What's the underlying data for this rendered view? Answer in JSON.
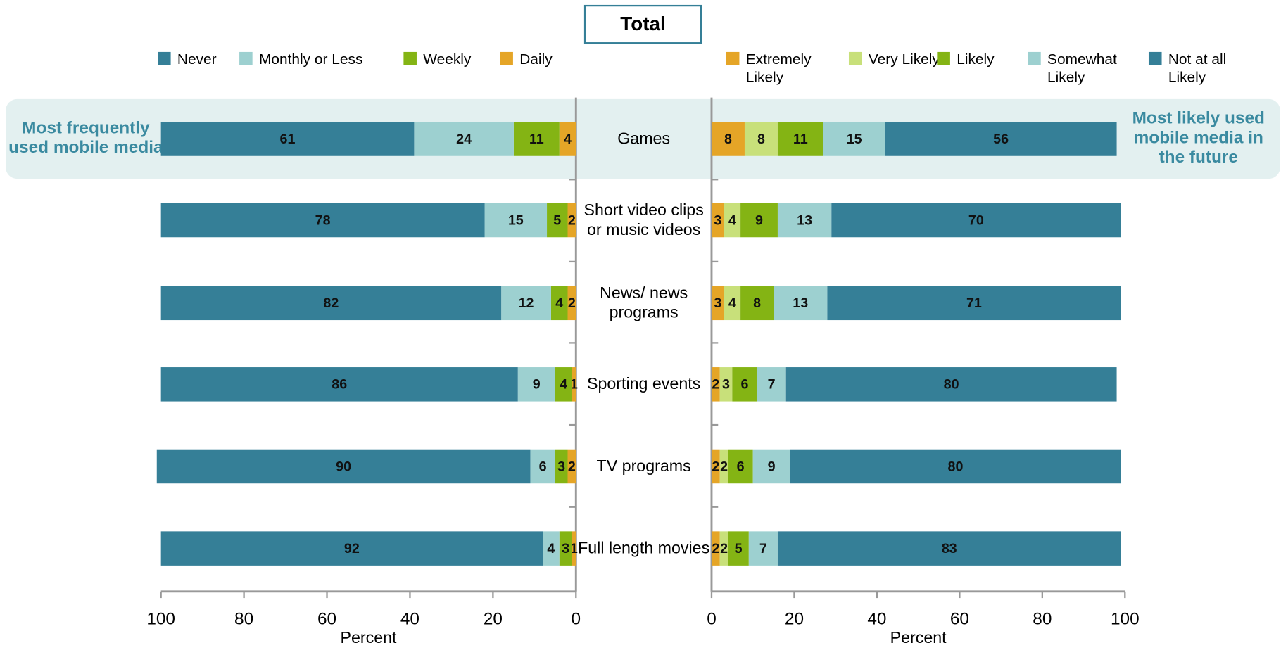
{
  "chart_data": [
    {
      "type": "bar",
      "title": "Total",
      "annotation": "Most frequently used mobile media",
      "xlabel": "Percent",
      "categories": [
        "Games",
        "Short video clips or music videos",
        "News/ news programs",
        "Sporting events",
        "TV programs",
        "Full length movies"
      ],
      "xlim": [
        100,
        0
      ],
      "xticks": [
        100,
        80,
        60,
        40,
        20,
        0
      ],
      "series": [
        {
          "name": "Never",
          "color": "#357f97",
          "values": [
            61,
            78,
            82,
            86,
            90,
            92
          ]
        },
        {
          "name": "Monthly or Less",
          "color": "#9dd0d0",
          "values": [
            24,
            15,
            12,
            9,
            6,
            4
          ]
        },
        {
          "name": "Weekly",
          "color": "#84b414",
          "values": [
            11,
            5,
            4,
            4,
            3,
            3
          ]
        },
        {
          "name": "Daily",
          "color": "#e5a527",
          "values": [
            4,
            2,
            2,
            1,
            2,
            1
          ]
        }
      ]
    },
    {
      "type": "bar",
      "annotation": "Most likely used mobile media in the future",
      "xlabel": "Percent",
      "xlim": [
        0,
        100
      ],
      "xticks": [
        0,
        20,
        40,
        60,
        80,
        100
      ],
      "series": [
        {
          "name": "Extremely Likely",
          "color": "#e5a527",
          "values": [
            8,
            3,
            3,
            2,
            2,
            2
          ]
        },
        {
          "name": "Very Likely",
          "color": "#c8e07a",
          "values": [
            8,
            4,
            4,
            3,
            2,
            2
          ]
        },
        {
          "name": "Likely",
          "color": "#84b414",
          "values": [
            11,
            9,
            8,
            6,
            6,
            5
          ]
        },
        {
          "name": "Somewhat Likely",
          "color": "#9dd0d0",
          "values": [
            15,
            13,
            13,
            7,
            9,
            7
          ]
        },
        {
          "name": "Not at all Likely",
          "color": "#357f97",
          "values": [
            56,
            70,
            71,
            80,
            80,
            83
          ]
        }
      ]
    }
  ]
}
